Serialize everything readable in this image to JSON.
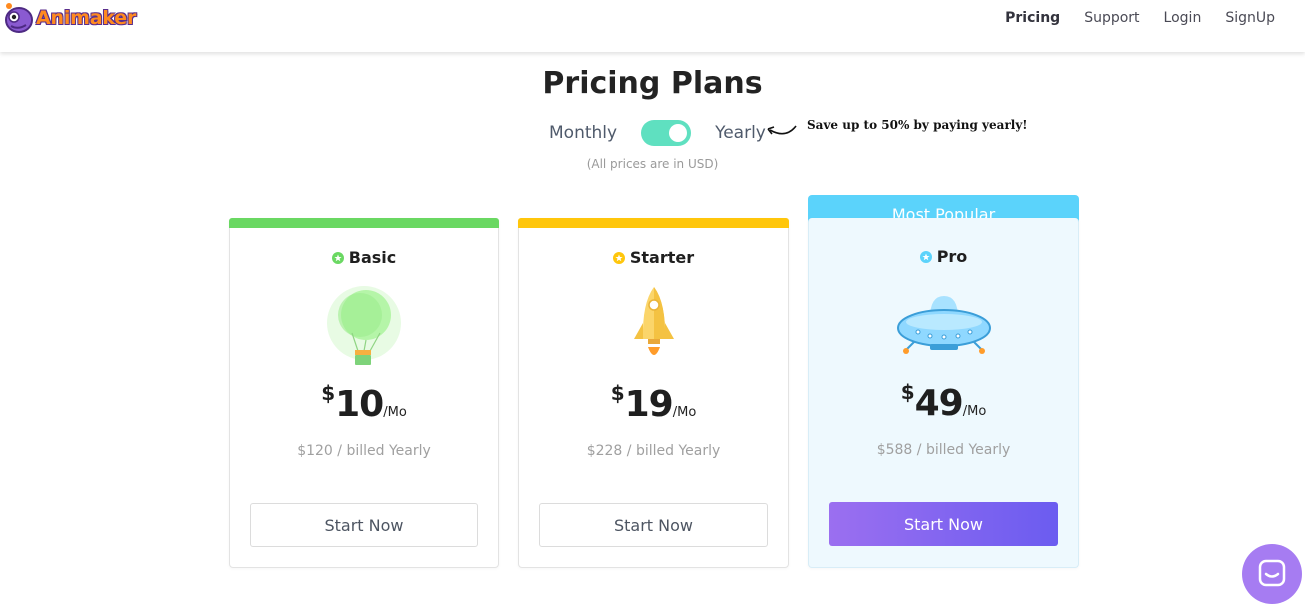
{
  "header": {
    "logo_text": "Animaker",
    "nav": [
      {
        "label": "Pricing",
        "active": true
      },
      {
        "label": "Support",
        "active": false
      },
      {
        "label": "Login",
        "active": false
      },
      {
        "label": "SignUp",
        "active": false
      }
    ]
  },
  "page": {
    "title": "Pricing Plans",
    "toggle": {
      "left_label": "Monthly",
      "right_label": "Yearly",
      "selected": "Yearly"
    },
    "save_note": "Save up to 50% by paying yearly!",
    "currency_note": "(All prices are in USD)"
  },
  "plans": [
    {
      "name": "Basic",
      "currency": "$",
      "amount": "10",
      "period": "/Mo",
      "billed": "$120 / billed Yearly",
      "button": "Start Now",
      "color": "#6ad862",
      "illustration": "hot-air-balloon"
    },
    {
      "name": "Starter",
      "currency": "$",
      "amount": "19",
      "period": "/Mo",
      "billed": "$228 / billed Yearly",
      "button": "Start Now",
      "color": "#ffc60b",
      "illustration": "rocket"
    },
    {
      "name": "Pro",
      "currency": "$",
      "amount": "49",
      "period": "/Mo",
      "billed": "$588 / billed Yearly",
      "button": "Start Now",
      "color": "#5bd3fb",
      "illustration": "ufo",
      "badge": "Most Popular"
    }
  ],
  "chat": {
    "icon": "chat-icon"
  }
}
